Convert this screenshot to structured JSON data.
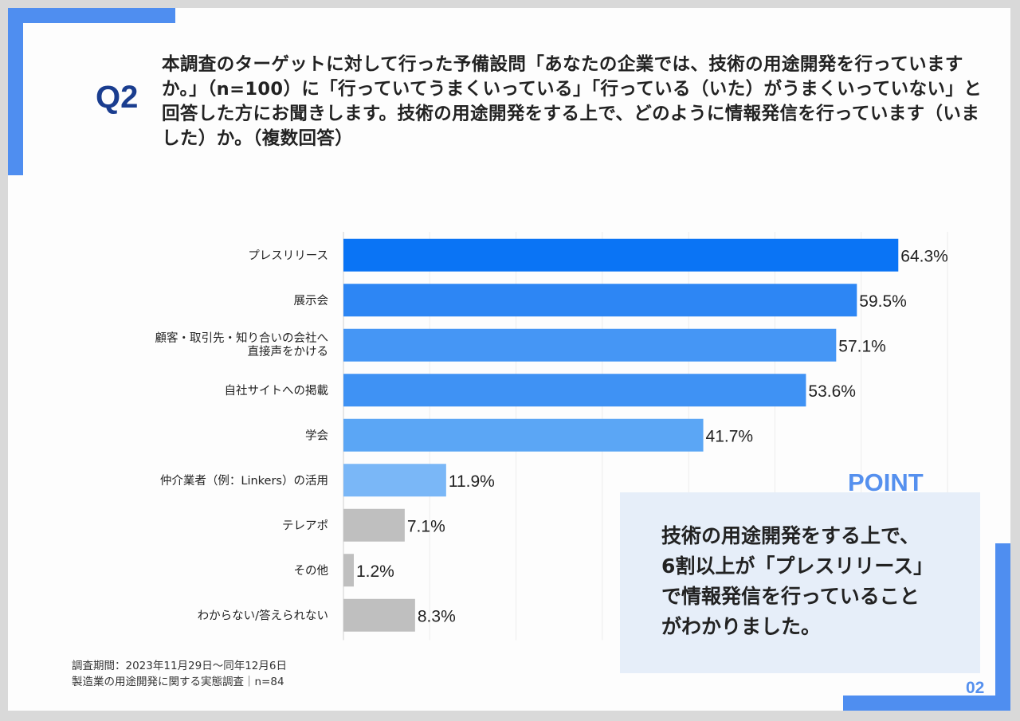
{
  "question": {
    "label": "Q2",
    "text": "本調査のターゲットに対して行った予備設問「あなたの企業では、技術の用途開発を行っていますか。」（n=100）に「行っていてうまくいっている」「行っている（いた）がうまくいっていない」と回答した方にお聞きします。技術の用途開発をする上で、どのように情報発信を行っています（いました）か。（複数回答）"
  },
  "chart_data": {
    "type": "bar",
    "orientation": "horizontal",
    "categories": [
      "プレスリリース",
      "展示会",
      "顧客・取引先・知り合いの会社へ直接声をかける",
      "自社サイトへの掲載",
      "学会",
      "仲介業者（例：Linkers）の活用",
      "テレアポ",
      "その他",
      "わからない/答えられない"
    ],
    "category_lines": [
      [
        "プレスリリース"
      ],
      [
        "展示会"
      ],
      [
        "顧客・取引先・知り合いの会社へ",
        "直接声をかける"
      ],
      [
        "自社サイトへの掲載"
      ],
      [
        "学会"
      ],
      [
        "仲介業者（例：Linkers）の活用"
      ],
      [
        "テレアポ"
      ],
      [
        "その他"
      ],
      [
        "わからない/答えられない"
      ]
    ],
    "values": [
      64.3,
      59.5,
      57.1,
      53.6,
      41.7,
      11.9,
      7.1,
      1.2,
      8.3
    ],
    "value_labels": [
      "64.3%",
      "59.5%",
      "57.1%",
      "53.6%",
      "41.7%",
      "11.9%",
      "7.1%",
      "1.2%",
      "8.3%"
    ],
    "colors": [
      "#0a74f5",
      "#2d86f4",
      "#4596f5",
      "#3f92f4",
      "#5ba6f5",
      "#7ab7f7",
      "#bfbfbf",
      "#bfbfbf",
      "#bfbfbf"
    ],
    "xlim": [
      0,
      70
    ],
    "grid": true,
    "title": "",
    "xlabel": "",
    "ylabel": ""
  },
  "point": {
    "title": "POINT",
    "lines": [
      "技術の用途開発をする上で、",
      "6割以上が「プレスリリース」",
      "で情報発信を行っていること",
      "がわかりました。"
    ]
  },
  "footnote": {
    "line1": "調査期間：2023年11月29日～同年12月6日",
    "line2": "製造業の用途開発に関する実態調査｜n=84"
  },
  "page_number": "02",
  "colors": {
    "accent": "#4f8ef0",
    "q_label": "#1a3d8f",
    "point_bg": "#e6eef9"
  }
}
